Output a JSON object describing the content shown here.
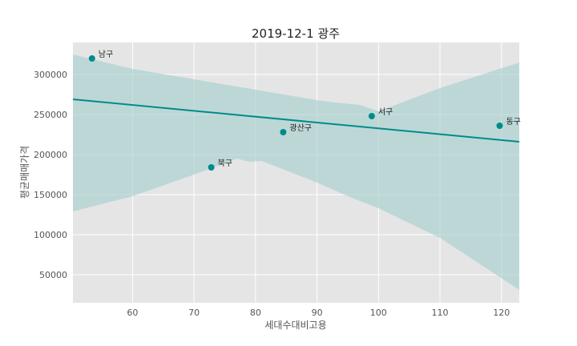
{
  "chart_data": {
    "type": "scatter",
    "title": "2019-12-1 광주",
    "xlabel": "세대수대비고용",
    "ylabel": "평균매매가격",
    "xlim": [
      50.3,
      122.9
    ],
    "ylim": [
      15000,
      340000
    ],
    "xticks": [
      60,
      70,
      80,
      90,
      100,
      110,
      120
    ],
    "yticks": [
      50000,
      100000,
      150000,
      200000,
      250000,
      300000
    ],
    "grid": true,
    "points": [
      {
        "label": "남구",
        "x": 53.4,
        "y": 320000
      },
      {
        "label": "북구",
        "x": 72.8,
        "y": 184000
      },
      {
        "label": "광산구",
        "x": 84.5,
        "y": 228000
      },
      {
        "label": "서구",
        "x": 98.9,
        "y": 248000
      },
      {
        "label": "동구",
        "x": 119.7,
        "y": 236000
      }
    ],
    "regression": {
      "line": [
        [
          50.3,
          269000
        ],
        [
          122.9,
          216000
        ]
      ],
      "ci_upper": [
        [
          50.3,
          325000
        ],
        [
          60,
          307000
        ],
        [
          70,
          294000
        ],
        [
          80,
          281000
        ],
        [
          90,
          268000
        ],
        [
          93,
          265000
        ],
        [
          97,
          262000
        ],
        [
          100,
          254000
        ],
        [
          110,
          283000
        ],
        [
          122.9,
          315000
        ]
      ],
      "ci_lower": [
        [
          50.3,
          129000
        ],
        [
          60,
          148000
        ],
        [
          70,
          175000
        ],
        [
          77,
          195000
        ],
        [
          79,
          191000
        ],
        [
          81,
          192000
        ],
        [
          90,
          165000
        ],
        [
          95,
          148000
        ],
        [
          100,
          133000
        ],
        [
          110,
          96000
        ],
        [
          122.9,
          31000
        ]
      ]
    },
    "colors": {
      "marker": "#008b8b",
      "line": "#008b8b",
      "band": "#a8cfcf",
      "panel": "#e5e5e5",
      "grid": "#ffffff"
    }
  }
}
